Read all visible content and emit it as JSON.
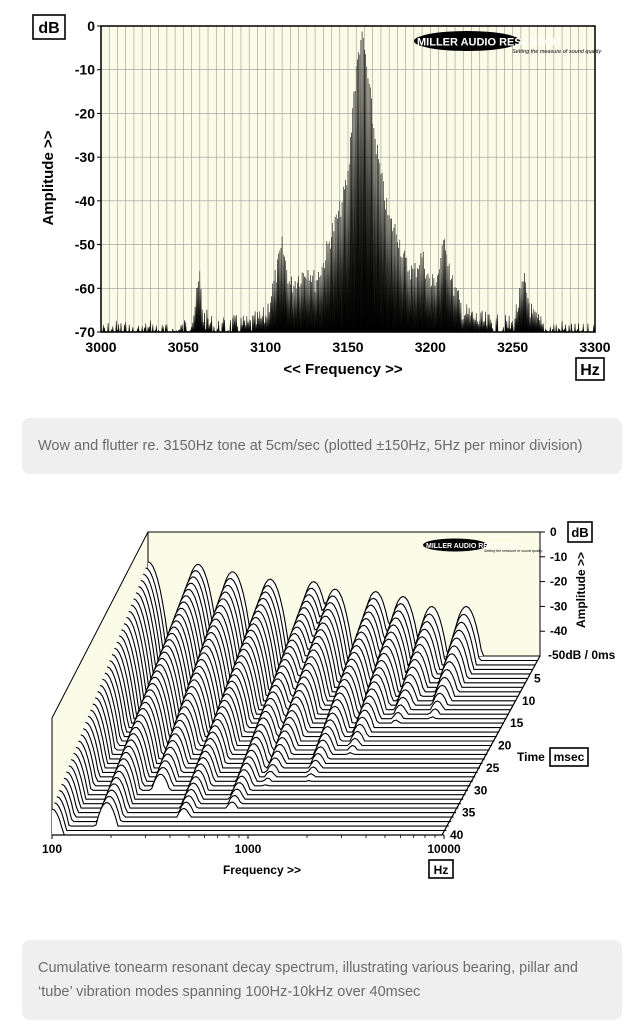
{
  "chart_data": [
    {
      "type": "area",
      "unit_label": "dB",
      "ylabel": "Amplitude >>",
      "xlabel": "<< Frequency >>",
      "x_unit": "Hz",
      "xlim": [
        3000,
        3300
      ],
      "ylim": [
        -70,
        0
      ],
      "x_ticks": [
        "3000",
        "3050",
        "3100",
        "3150",
        "3200",
        "3250",
        "3300"
      ],
      "y_ticks": [
        "0",
        "-10",
        "-20",
        "-30",
        "-40",
        "-50",
        "-60",
        "-70"
      ],
      "grid": true,
      "logo_text": "MILLER AUDIO RESEARCH",
      "logo_tagline": "Setting the measure of sound quality",
      "series": [
        {
          "x": [
            3000,
            3010,
            3020,
            3030,
            3040,
            3050,
            3056,
            3060,
            3062,
            3070,
            3080,
            3090,
            3100,
            3106,
            3110,
            3115,
            3120,
            3126,
            3130,
            3135,
            3140,
            3145,
            3150,
            3153,
            3156,
            3158,
            3160,
            3163,
            3166,
            3170,
            3175,
            3180,
            3185,
            3190,
            3195,
            3200,
            3205,
            3209,
            3213,
            3220,
            3230,
            3240,
            3250,
            3257,
            3262,
            3270,
            3280,
            3290,
            3300
          ],
          "values": [
            -68,
            -67,
            -68,
            -67,
            -68,
            -67,
            -64,
            -55,
            -64,
            -67,
            -66,
            -66,
            -64,
            -55,
            -48,
            -57,
            -55,
            -53,
            -56,
            -52,
            -45,
            -40,
            -32,
            -15,
            -5,
            0,
            -3,
            -12,
            -22,
            -32,
            -42,
            -45,
            -52,
            -54,
            -50,
            -57,
            -54,
            -46,
            -56,
            -63,
            -65,
            -66,
            -66,
            -56,
            -64,
            -67,
            -67,
            -68,
            -68
          ]
        }
      ]
    },
    {
      "type": "area",
      "unit_label": "dB",
      "zlabel": "Amplitude >>",
      "xlabel": "Frequency >>",
      "x_unit": "Hz",
      "time_label": "Time",
      "time_unit": "msec",
      "x_ticks": [
        "100",
        "1000",
        "10000"
      ],
      "xlim": [
        100,
        10000
      ],
      "x_scale": "log",
      "z_ticks": [
        "0",
        "-10",
        "-20",
        "-30",
        "-40"
      ],
      "z_base_label": "-50dB / 0ms",
      "zlim": [
        -50,
        0
      ],
      "time_ticks": [
        "5",
        "10",
        "15",
        "20",
        "25",
        "30",
        "35",
        "40"
      ],
      "tlim": [
        0,
        40
      ],
      "slices": 40,
      "logo_text": "MILLER AUDIO RESEARCH",
      "logo_tagline": "Setting the measure of sound quality",
      "resonances": [
        {
          "freq": 100,
          "level": -12,
          "decay_ms": 40
        },
        {
          "freq": 180,
          "level": -13,
          "decay_ms": 38
        },
        {
          "freq": 270,
          "level": -16,
          "decay_ms": 30
        },
        {
          "freq": 420,
          "level": -19,
          "decay_ms": 36
        },
        {
          "freq": 700,
          "level": -20,
          "decay_ms": 34
        },
        {
          "freq": 900,
          "level": -23,
          "decay_ms": 30
        },
        {
          "freq": 1450,
          "level": -24,
          "decay_ms": 30
        },
        {
          "freq": 2000,
          "level": -26,
          "decay_ms": 26
        },
        {
          "freq": 2800,
          "level": -30,
          "decay_ms": 22
        },
        {
          "freq": 4200,
          "level": -30,
          "decay_ms": 20
        }
      ]
    }
  ],
  "captions": [
    "Wow and flutter re. 3150Hz tone at 5cm/sec (plotted ±150Hz, 5Hz per minor division)",
    "Cumulative tonearm resonant decay spectrum, illustrating various bearing, pillar and ‘tube’ vibration modes spanning 100Hz-10kHz over 40msec"
  ]
}
